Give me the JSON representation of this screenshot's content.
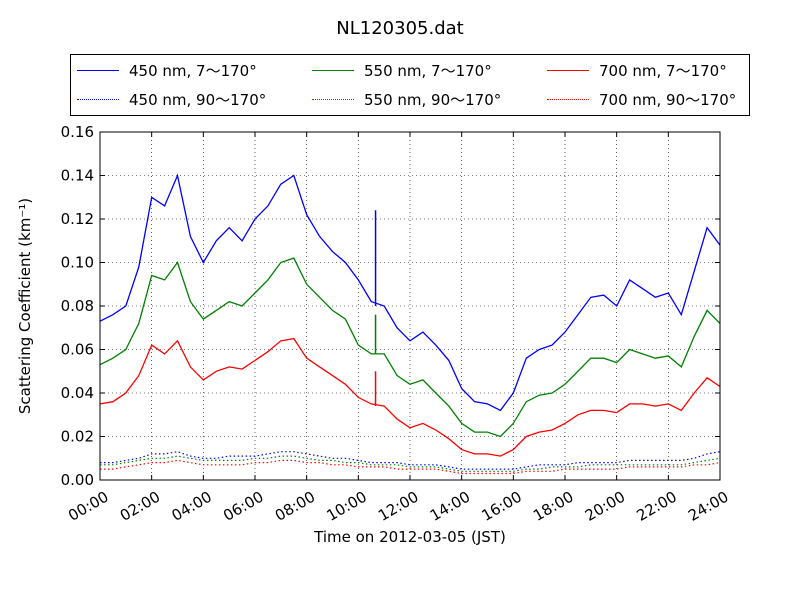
{
  "chart_data": {
    "type": "line",
    "title": "NL120305.dat",
    "xlabel": "Time on 2012-03-05 (JST)",
    "ylabel": "Scattering Coefficient (km⁻¹)",
    "xlim": [
      "00:00",
      "24:00"
    ],
    "ylim": [
      0.0,
      0.16
    ],
    "grid": true,
    "legend_position": "top, above axes",
    "x_ticks": [
      "00:00",
      "02:00",
      "04:00",
      "06:00",
      "08:00",
      "10:00",
      "12:00",
      "14:00",
      "16:00",
      "18:00",
      "20:00",
      "22:00",
      "24:00"
    ],
    "y_ticks": [
      "0.00",
      "0.02",
      "0.04",
      "0.06",
      "0.08",
      "0.10",
      "0.12",
      "0.14",
      "0.16"
    ],
    "x": [
      "00:00",
      "00:30",
      "01:00",
      "01:30",
      "02:00",
      "02:30",
      "03:00",
      "03:30",
      "04:00",
      "04:30",
      "05:00",
      "05:30",
      "06:00",
      "06:30",
      "07:00",
      "07:30",
      "08:00",
      "08:30",
      "09:00",
      "09:30",
      "10:00",
      "10:30",
      "11:00",
      "11:30",
      "12:00",
      "12:30",
      "13:00",
      "13:30",
      "14:00",
      "14:30",
      "15:00",
      "15:30",
      "16:00",
      "16:30",
      "17:00",
      "17:30",
      "18:00",
      "18:30",
      "19:00",
      "19:30",
      "20:00",
      "20:30",
      "21:00",
      "21:30",
      "22:00",
      "22:30",
      "23:00",
      "23:30",
      "24:00"
    ],
    "series": [
      {
        "name": "450 nm, 7～170°",
        "color": "#0000ff",
        "style": "solid",
        "values": [
          0.073,
          0.076,
          0.08,
          0.098,
          0.13,
          0.126,
          0.14,
          0.112,
          0.1,
          0.11,
          0.116,
          0.11,
          0.12,
          0.126,
          0.136,
          0.14,
          0.122,
          0.112,
          0.105,
          0.1,
          0.092,
          0.082,
          0.08,
          0.07,
          0.064,
          0.068,
          0.062,
          0.055,
          0.042,
          0.036,
          0.035,
          0.032,
          0.04,
          0.056,
          0.06,
          0.062,
          0.068,
          0.076,
          0.084,
          0.085,
          0.08,
          0.092,
          0.088,
          0.084,
          0.086,
          0.076,
          0.096,
          0.116,
          0.108
        ]
      },
      {
        "name": "550 nm, 7～170°",
        "color": "#008000",
        "style": "solid",
        "values": [
          0.053,
          0.056,
          0.06,
          0.072,
          0.094,
          0.092,
          0.1,
          0.082,
          0.074,
          0.078,
          0.082,
          0.08,
          0.086,
          0.092,
          0.1,
          0.102,
          0.09,
          0.084,
          0.078,
          0.074,
          0.062,
          0.058,
          0.058,
          0.048,
          0.044,
          0.046,
          0.04,
          0.034,
          0.026,
          0.022,
          0.022,
          0.02,
          0.026,
          0.036,
          0.039,
          0.04,
          0.044,
          0.05,
          0.056,
          0.056,
          0.054,
          0.06,
          0.058,
          0.056,
          0.057,
          0.052,
          0.066,
          0.078,
          0.072
        ]
      },
      {
        "name": "700 nm, 7～170°",
        "color": "#ff0000",
        "style": "solid",
        "values": [
          0.035,
          0.036,
          0.04,
          0.048,
          0.062,
          0.058,
          0.064,
          0.052,
          0.046,
          0.05,
          0.052,
          0.051,
          0.055,
          0.059,
          0.064,
          0.065,
          0.056,
          0.052,
          0.048,
          0.044,
          0.038,
          0.035,
          0.034,
          0.028,
          0.024,
          0.026,
          0.023,
          0.019,
          0.014,
          0.012,
          0.012,
          0.011,
          0.014,
          0.02,
          0.022,
          0.023,
          0.026,
          0.03,
          0.032,
          0.032,
          0.031,
          0.035,
          0.035,
          0.034,
          0.035,
          0.032,
          0.04,
          0.047,
          0.043
        ]
      },
      {
        "name": "450 nm, 90～170°",
        "color": "#0000ff",
        "style": "dotted",
        "values": [
          0.008,
          0.008,
          0.009,
          0.01,
          0.012,
          0.012,
          0.013,
          0.011,
          0.01,
          0.01,
          0.011,
          0.011,
          0.011,
          0.012,
          0.013,
          0.013,
          0.012,
          0.011,
          0.01,
          0.01,
          0.009,
          0.008,
          0.008,
          0.008,
          0.007,
          0.007,
          0.007,
          0.006,
          0.005,
          0.005,
          0.005,
          0.005,
          0.005,
          0.006,
          0.007,
          0.007,
          0.007,
          0.008,
          0.008,
          0.008,
          0.008,
          0.009,
          0.009,
          0.009,
          0.009,
          0.009,
          0.01,
          0.012,
          0.013
        ]
      },
      {
        "name": "550 nm, 90～170°",
        "color": "#008000",
        "style": "dotted",
        "values": [
          0.007,
          0.007,
          0.008,
          0.009,
          0.01,
          0.01,
          0.011,
          0.01,
          0.009,
          0.009,
          0.009,
          0.009,
          0.01,
          0.01,
          0.011,
          0.011,
          0.01,
          0.009,
          0.009,
          0.008,
          0.008,
          0.007,
          0.007,
          0.007,
          0.006,
          0.006,
          0.006,
          0.005,
          0.004,
          0.004,
          0.004,
          0.004,
          0.004,
          0.005,
          0.005,
          0.006,
          0.006,
          0.006,
          0.007,
          0.007,
          0.007,
          0.007,
          0.007,
          0.007,
          0.007,
          0.007,
          0.008,
          0.009,
          0.01
        ]
      },
      {
        "name": "700 nm, 90～170°",
        "color": "#ff0000",
        "style": "dotted",
        "values": [
          0.005,
          0.005,
          0.006,
          0.007,
          0.008,
          0.008,
          0.009,
          0.008,
          0.007,
          0.007,
          0.007,
          0.007,
          0.008,
          0.008,
          0.009,
          0.009,
          0.008,
          0.008,
          0.007,
          0.007,
          0.006,
          0.006,
          0.006,
          0.005,
          0.005,
          0.005,
          0.005,
          0.004,
          0.003,
          0.003,
          0.003,
          0.003,
          0.003,
          0.004,
          0.004,
          0.004,
          0.005,
          0.005,
          0.005,
          0.005,
          0.005,
          0.006,
          0.006,
          0.006,
          0.006,
          0.006,
          0.007,
          0.007,
          0.008
        ]
      }
    ],
    "annotations": [
      {
        "description": "spike",
        "series": "450 nm, 7～170°",
        "x": "10:40",
        "y": 0.124
      },
      {
        "description": "spike",
        "series": "550 nm, 7～170°",
        "x": "10:40",
        "y": 0.076
      },
      {
        "description": "spike",
        "series": "700 nm, 7～170°",
        "x": "10:40",
        "y": 0.05
      }
    ]
  }
}
